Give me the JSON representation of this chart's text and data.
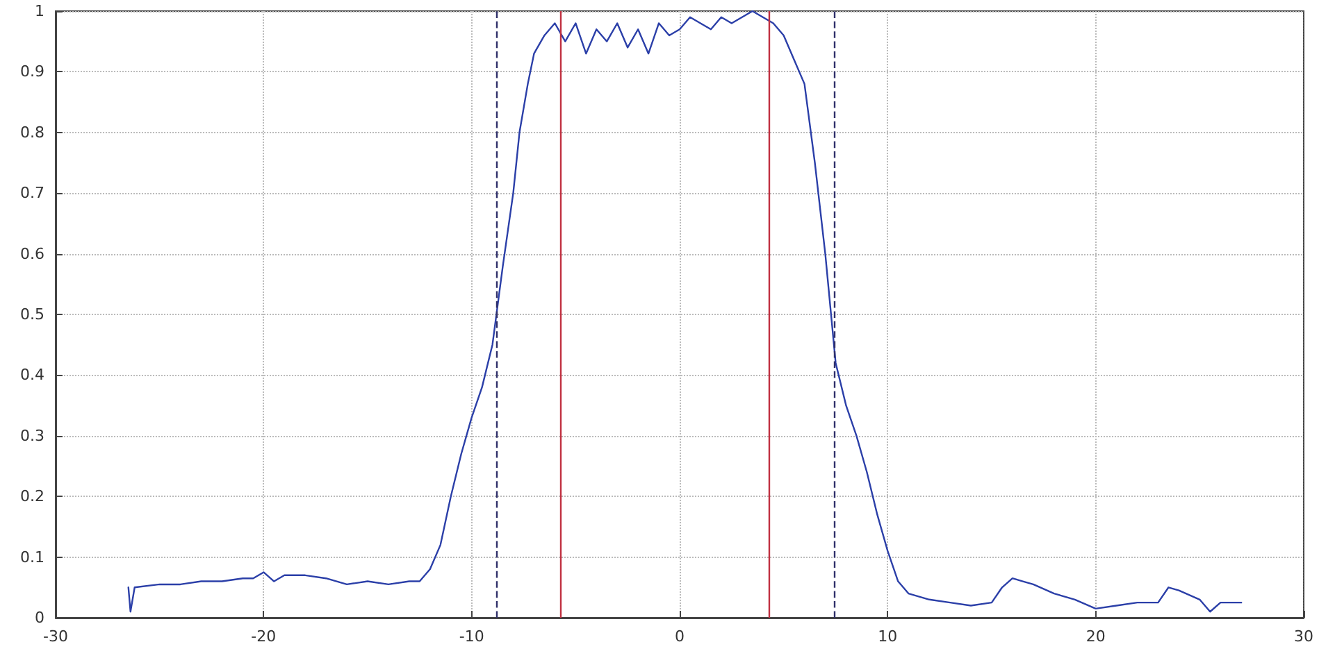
{
  "chart_data": {
    "type": "line",
    "color": "#2b3fa8",
    "x": [
      -26.5,
      -26.4,
      -26.2,
      -25,
      -24,
      -23,
      -22,
      -21,
      -20.5,
      -20,
      -19.5,
      -19,
      -18,
      -17,
      -16,
      -15,
      -14,
      -13,
      -12.5,
      -12,
      -11.5,
      -11,
      -10.5,
      -10,
      -9.5,
      -9,
      -8.5,
      -8,
      -7.7,
      -7.3,
      -7,
      -6.5,
      -6,
      -5.5,
      -5,
      -4.5,
      -4,
      -3.5,
      -3,
      -2.5,
      -2,
      -1.5,
      -1,
      -0.5,
      0,
      0.5,
      1,
      1.5,
      2,
      2.5,
      3,
      3.5,
      4,
      4.5,
      5,
      5.5,
      6,
      6.5,
      7,
      7.5,
      8,
      8.5,
      9,
      9.5,
      10,
      10.5,
      11,
      12,
      13,
      14,
      15,
      15.5,
      16,
      16.5,
      17,
      18,
      19,
      20,
      21,
      22,
      23,
      23.5,
      24,
      25,
      25.5,
      26,
      27
    ],
    "values": [
      0.05,
      0.01,
      0.05,
      0.055,
      0.055,
      0.06,
      0.06,
      0.065,
      0.065,
      0.075,
      0.06,
      0.07,
      0.07,
      0.065,
      0.055,
      0.06,
      0.055,
      0.06,
      0.06,
      0.08,
      0.12,
      0.2,
      0.27,
      0.33,
      0.38,
      0.45,
      0.58,
      0.7,
      0.8,
      0.88,
      0.93,
      0.96,
      0.98,
      0.95,
      0.98,
      0.93,
      0.97,
      0.95,
      0.98,
      0.94,
      0.97,
      0.93,
      0.98,
      0.96,
      0.97,
      0.99,
      0.98,
      0.97,
      0.99,
      0.98,
      0.99,
      1,
      0.99,
      0.98,
      0.96,
      0.92,
      0.88,
      0.75,
      0.6,
      0.42,
      0.35,
      0.3,
      0.24,
      0.17,
      0.11,
      0.06,
      0.04,
      0.03,
      0.025,
      0.02,
      0.025,
      0.05,
      0.065,
      0.06,
      0.055,
      0.04,
      0.03,
      0.015,
      0.02,
      0.025,
      0.025,
      0.05,
      0.045,
      0.03,
      0.01,
      0.025,
      0.025
    ],
    "xlim": [
      -30,
      30
    ],
    "xticks": [
      -30,
      -20,
      -10,
      0,
      10,
      20,
      30
    ],
    "ylim": [
      0,
      1
    ],
    "yticks": [
      0,
      0.1,
      0.2,
      0.3,
      0.4,
      0.5,
      0.6,
      0.7,
      0.8,
      0.9,
      1
    ],
    "grid": true,
    "marker": "none",
    "line_style": "solid",
    "ref_lines": [
      {
        "axis": "x",
        "value": -8.8,
        "color": "#30306a",
        "line_style": "dashed"
      },
      {
        "axis": "x",
        "value": -5.7,
        "color": "#c03040",
        "line_style": "solid"
      },
      {
        "axis": "x",
        "value": 4.3,
        "color": "#c03040",
        "line_style": "solid"
      },
      {
        "axis": "x",
        "value": 7.4,
        "color": "#30306a",
        "line_style": "dashed"
      }
    ]
  }
}
